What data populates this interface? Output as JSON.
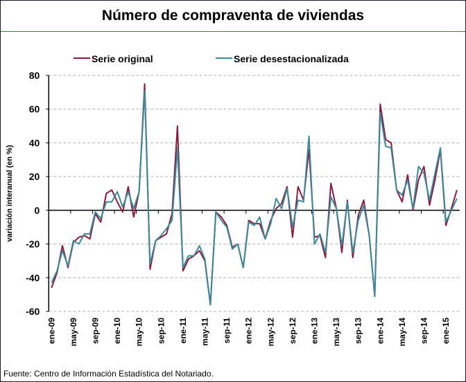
{
  "chart_data": {
    "type": "line",
    "title": "Número de compraventa de viviendas",
    "ylabel": "variación interanual (en %)",
    "xlabel": "",
    "ylim": [
      -60,
      80
    ],
    "yticks": [
      80,
      60,
      40,
      20,
      0,
      -20,
      -40,
      -60
    ],
    "grid": true,
    "legend_position": "top-center",
    "x_start": "ene-09",
    "x_end": "mar-15",
    "xtick_labels": [
      "ene-09",
      "may-09",
      "sep-09",
      "ene-10",
      "may-10",
      "sep-10",
      "ene-11",
      "may-11",
      "sep-11",
      "ene-12",
      "may-12",
      "sep-12",
      "ene-13",
      "may-13",
      "sep-13",
      "ene-14",
      "may-14",
      "sep-14",
      "ene-15"
    ],
    "series": [
      {
        "name": "Serie original",
        "color": "#8c1a3c",
        "values": [
          -46,
          -37,
          -21,
          -34,
          -19,
          -16,
          -15,
          -17,
          -2,
          -7,
          10,
          12,
          5,
          -1,
          14,
          -4,
          11,
          75,
          -35,
          -18,
          -16,
          -14,
          -2,
          50,
          -36,
          -29,
          -27,
          -24,
          -30,
          -56,
          -1,
          -4,
          -9,
          -22,
          -20,
          -34,
          -6,
          -8,
          -8,
          -17,
          -6,
          1,
          4,
          14,
          -16,
          14,
          6,
          36,
          -16,
          -15,
          -28,
          16,
          1,
          -25,
          6,
          -28,
          -3,
          6,
          -15,
          -51,
          63,
          42,
          40,
          12,
          5,
          21,
          0,
          18,
          26,
          3,
          18,
          36,
          -9,
          1,
          12
        ]
      },
      {
        "name": "Serie desestacionalizada",
        "color": "#3a8a9c",
        "values": [
          -43,
          -36,
          -24,
          -33,
          -18,
          -20,
          -14,
          -14,
          -1,
          -5,
          5,
          5,
          11,
          2,
          11,
          1,
          11,
          71,
          -32,
          -18,
          -15,
          -11,
          -6,
          37,
          -34,
          -27,
          -27,
          -21,
          -29,
          -56,
          -1,
          -6,
          -10,
          -23,
          -20,
          -34,
          -7,
          -9,
          -4,
          -17,
          -8,
          7,
          1,
          13,
          -10,
          6,
          5,
          44,
          -20,
          -14,
          -25,
          8,
          1,
          -21,
          5,
          -25,
          -6,
          3,
          -15,
          -51,
          58,
          38,
          37,
          12,
          9,
          18,
          1,
          26,
          22,
          6,
          22,
          37,
          -7,
          0,
          7
        ]
      }
    ]
  },
  "footer": "Fuente: Centro de Información Estadística del Notariado."
}
